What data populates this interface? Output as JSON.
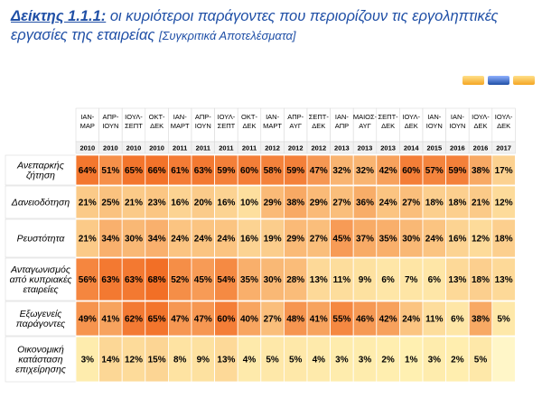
{
  "title": {
    "lead": "Δείκτης 1.1.1:",
    "main": "οι κυριότεροι παράγοντες που περιορίζουν τις εργοληπτικές εργασίες της εταιρείας",
    "sub": "[Συγκριτικά Αποτελέσματα]"
  },
  "colors": {
    "title": "#1f4fa6",
    "scale_low": "#fff2b3",
    "scale_high": "#f26b22"
  },
  "chart_data": {
    "type": "heatmap",
    "columns": [
      {
        "period": [
          "ΙΑΝ-",
          "ΜΑΡ"
        ],
        "year": "2010"
      },
      {
        "period": [
          "ΑΠΡ-",
          "ΙΟΥΝ"
        ],
        "year": "2010"
      },
      {
        "period": [
          "ΙΟΥΛ-",
          "ΣΕΠΤ"
        ],
        "year": "2010"
      },
      {
        "period": [
          "ΟΚΤ-",
          "ΔΕΚ"
        ],
        "year": "2010"
      },
      {
        "period": [
          "ΙΑΝ-",
          "ΜΑΡΤ"
        ],
        "year": "2011"
      },
      {
        "period": [
          "ΑΠΡ-",
          "ΙΟΥΝ"
        ],
        "year": "2011"
      },
      {
        "period": [
          "ΙΟΥΛ-",
          "ΣΕΠΤ"
        ],
        "year": "2011"
      },
      {
        "period": [
          "ΟΚΤ-",
          "ΔΕΚ"
        ],
        "year": "2011"
      },
      {
        "period": [
          "ΙΑΝ-",
          "ΜΑΡΤ"
        ],
        "year": "2012"
      },
      {
        "period": [
          "ΑΠΡ-",
          "ΑΥΓ"
        ],
        "year": "2012"
      },
      {
        "period": [
          "ΣΕΠΤ-",
          "ΔΕΚ"
        ],
        "year": "2012"
      },
      {
        "period": [
          "ΙΑΝ-",
          "ΑΠΡ"
        ],
        "year": "2013"
      },
      {
        "period": [
          "ΜΑΙΟΣ-",
          "ΑΥΓ"
        ],
        "year": "2013"
      },
      {
        "period": [
          "ΣΕΠΤ-",
          "ΔΕΚ"
        ],
        "year": "2013"
      },
      {
        "period": [
          "ΙΟΥΛ-",
          "ΔΕΚ"
        ],
        "year": "2014"
      },
      {
        "period": [
          "ΙΑΝ-",
          "ΙΟΥΝ"
        ],
        "year": "2015"
      },
      {
        "period": [
          "ΙΑΝ-",
          "ΙΟΥΝ"
        ],
        "year": "2016"
      },
      {
        "period": [
          "ΙΟΥΛ-",
          "ΔΕΚ"
        ],
        "year": "2016"
      },
      {
        "period": [
          "ΙΟΥΛ-",
          "ΔΕΚ"
        ],
        "year": "2017"
      }
    ],
    "rows": [
      {
        "label": [
          "Ανεπαρκής",
          "ζήτηση"
        ],
        "values": [
          64,
          51,
          65,
          66,
          61,
          63,
          59,
          60,
          58,
          59,
          47,
          32,
          32,
          42,
          60,
          57,
          59,
          38,
          17
        ]
      },
      {
        "label": [
          "Δανειοδότηση"
        ],
        "values": [
          21,
          25,
          21,
          23,
          16,
          20,
          16,
          10,
          29,
          38,
          29,
          27,
          36,
          24,
          27,
          18,
          18,
          21,
          12
        ]
      },
      {
        "label": [
          "Ρευστότητα"
        ],
        "values": [
          21,
          34,
          30,
          34,
          24,
          24,
          24,
          16,
          19,
          29,
          27,
          45,
          37,
          35,
          30,
          24,
          16,
          12,
          18
        ]
      },
      {
        "label": [
          "Ανταγωνισμός",
          "από κυπριακές",
          "εταιρείες"
        ],
        "values": [
          56,
          63,
          63,
          68,
          52,
          45,
          54,
          35,
          30,
          28,
          13,
          11,
          9,
          6,
          7,
          6,
          13,
          18,
          13
        ]
      },
      {
        "label": [
          "Εξωγενείς",
          "παράγοντες"
        ],
        "values": [
          49,
          41,
          62,
          65,
          47,
          47,
          60,
          40,
          27,
          48,
          41,
          55,
          46,
          42,
          24,
          11,
          6,
          38,
          5
        ]
      },
      {
        "label": [
          "Οικονομική",
          "κατάσταση",
          "επιχείρησης"
        ],
        "values": [
          3,
          14,
          12,
          15,
          8,
          9,
          13,
          4,
          5,
          5,
          4,
          3,
          3,
          2,
          1,
          3,
          2,
          5,
          null
        ]
      }
    ],
    "value_suffix": "%",
    "value_range": [
      0,
      70
    ]
  }
}
